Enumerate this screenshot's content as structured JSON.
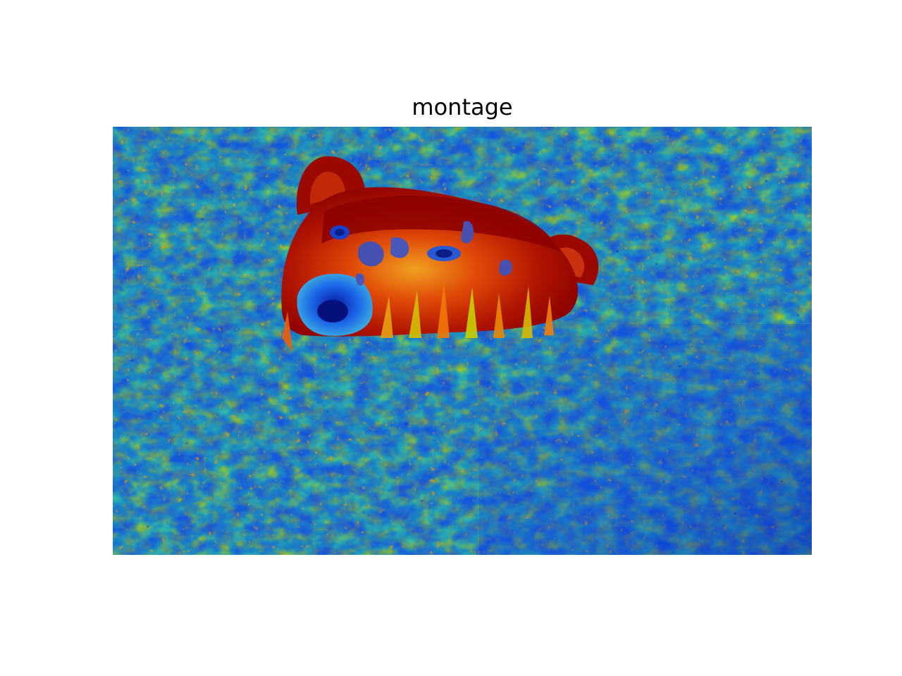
{
  "figure": {
    "title": "montage"
  },
  "image": {
    "description_icon": "heatmap-bear-in-grass",
    "colormap": "jet",
    "colors": {
      "low": "#00007f",
      "mid_low": "#0050ff",
      "mid": "#29c8a8",
      "mid_high": "#c8d400",
      "high": "#ff6a00",
      "peak": "#8b0000"
    }
  }
}
